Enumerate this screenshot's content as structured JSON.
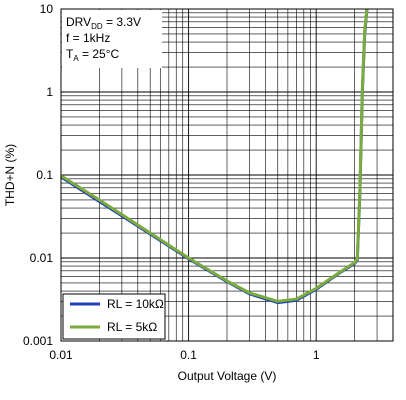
{
  "chart_data": {
    "type": "line",
    "xlabel": "Output Voltage (V)",
    "ylabel": "THD+N (%)",
    "x_scale": "log",
    "y_scale": "log",
    "xlim": [
      0.01,
      4
    ],
    "ylim": [
      0.001,
      10
    ],
    "x_ticks": [
      {
        "value": 0.01,
        "label": "0.01"
      },
      {
        "value": 0.1,
        "label": "0.1"
      },
      {
        "value": 1,
        "label": "1"
      }
    ],
    "y_ticks": [
      {
        "value": 0.001,
        "label": "0.001"
      },
      {
        "value": 0.01,
        "label": "0.01"
      },
      {
        "value": 0.1,
        "label": "0.1"
      },
      {
        "value": 1,
        "label": "1"
      },
      {
        "value": 10,
        "label": "10"
      }
    ],
    "grid": true,
    "annotation": {
      "line1_main": "DRV",
      "line1_sub": "DD",
      "line1_rest": " = 3.3V",
      "line2": "f = 1kHz",
      "line3_main": "T",
      "line3_sub": "A",
      "line3_rest": " = 25°C"
    },
    "legend_position": "bottom-left",
    "series": [
      {
        "name": "RL = 10kΩ",
        "color": "#1f3fbf",
        "x": [
          0.01,
          0.02,
          0.05,
          0.1,
          0.2,
          0.3,
          0.5,
          0.7,
          1.0,
          1.5,
          2.0,
          2.1,
          2.2,
          2.3,
          2.4,
          2.5
        ],
        "y": [
          0.095,
          0.048,
          0.0195,
          0.0098,
          0.0052,
          0.0037,
          0.0029,
          0.0031,
          0.0042,
          0.0065,
          0.0086,
          0.0095,
          0.06,
          1.0,
          5.0,
          10.0
        ]
      },
      {
        "name": "RL = 5kΩ",
        "color": "#7aab3c",
        "x": [
          0.01,
          0.02,
          0.05,
          0.1,
          0.2,
          0.3,
          0.5,
          0.7,
          1.0,
          1.5,
          2.0,
          2.1,
          2.2,
          2.3,
          2.4,
          2.5
        ],
        "y": [
          0.098,
          0.05,
          0.02,
          0.01,
          0.0053,
          0.0038,
          0.003,
          0.0032,
          0.0043,
          0.0066,
          0.0088,
          0.0097,
          0.065,
          1.1,
          5.5,
          10.0
        ]
      }
    ]
  }
}
